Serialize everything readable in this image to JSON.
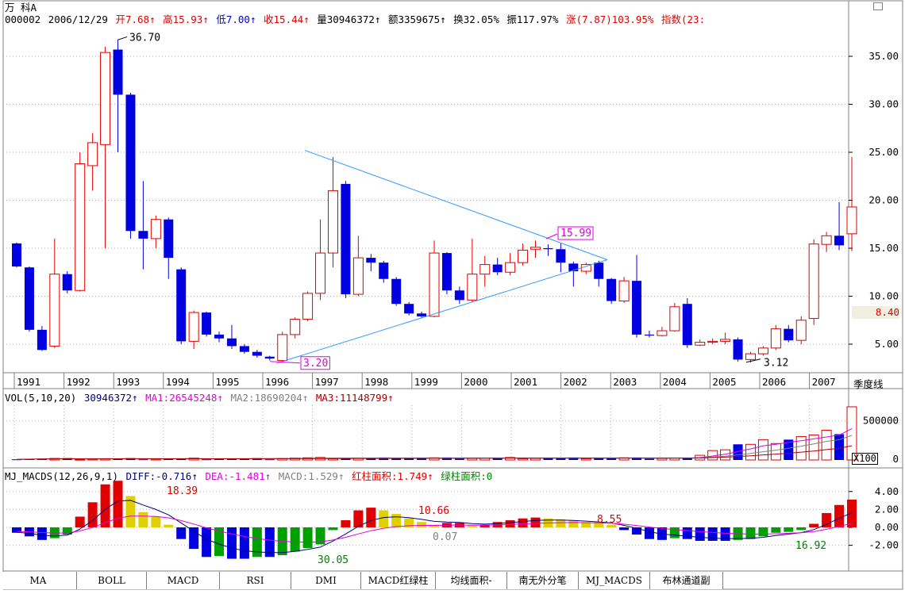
{
  "header": {
    "stock_name": "万  科A",
    "code": "000002",
    "date": "2006/12/29",
    "open": "开7.68↑",
    "high": "高15.93↑",
    "low": "低7.00↑",
    "close": "收15.44↑",
    "volume": "量30946372↑",
    "amount": "额3359675↑",
    "turnover": "换32.05%",
    "amplitude": "振117.97%",
    "change": "涨(7.87)103.95%",
    "index": "指数(23:"
  },
  "period_label": "季度线",
  "current_price_tag": "8.40",
  "vol_panel": {
    "title": "VOL(5,10,20)",
    "value": "30946372↑",
    "ma1": "MA1:26545248↑",
    "ma2": "MA2:18690204↑",
    "ma3": "MA3:11148799↑",
    "unit": "X100"
  },
  "macd_panel": {
    "title": "MJ_MACDS(12,26,9,1)",
    "diff": "DIFF:-0.716↑",
    "dea": "DEA:-1.481↑",
    "macd": "MACD:1.529↑",
    "red_area": "红柱面积:1.749↑",
    "green_area": "绿柱面积:0"
  },
  "tabs": [
    "MA",
    "BOLL",
    "MACD",
    "RSI",
    "DMI",
    "MACD红绿柱",
    "均线面积-",
    "南无外分笔",
    "MJ_MACDS",
    "布林通道副"
  ],
  "colors": {
    "up": "#e00000",
    "down": "#0000e0",
    "trend": "#3399ff",
    "grid": "#b0b0b0",
    "green_bar": "#00a000",
    "yellow_bar": "#e0d000",
    "magenta": "#e000e0"
  },
  "chart_data": [
    {
      "type": "candlestick",
      "title": "",
      "x_axis_labels": [
        "1991",
        "1992",
        "1993",
        "1994",
        "1995",
        "1996",
        "1997",
        "1998",
        "1999",
        "2000",
        "2001",
        "2002",
        "2003",
        "2004",
        "2005",
        "2006",
        "2007"
      ],
      "y_ticks": [
        "35.00",
        "30.00",
        "25.00",
        "20.00",
        "15.00",
        "10.00",
        "5.00"
      ],
      "ylim": [
        2.0,
        38.0
      ],
      "candles": [
        [
          15.5,
          15.6,
          13.1,
          13.0
        ],
        [
          13.0,
          13.1,
          6.5,
          6.3
        ],
        [
          6.5,
          6.9,
          4.4,
          4.3
        ],
        [
          4.8,
          16.0,
          12.3,
          4.6
        ],
        [
          12.3,
          12.6,
          10.6,
          10.3
        ],
        [
          10.6,
          25.0,
          23.8,
          10.5
        ],
        [
          23.6,
          27.0,
          26.0,
          21.0
        ],
        [
          25.8,
          36.0,
          35.4,
          15.0
        ],
        [
          35.7,
          36.7,
          31.0,
          25.0
        ],
        [
          31.0,
          31.2,
          16.8,
          16.0
        ],
        [
          16.8,
          22.0,
          16.0,
          12.8
        ],
        [
          16.0,
          18.4,
          18.0,
          15.0
        ],
        [
          18.0,
          18.2,
          14.0,
          11.8
        ],
        [
          12.8,
          13.0,
          5.3,
          5.0
        ],
        [
          5.3,
          8.5,
          8.3,
          4.5
        ],
        [
          8.3,
          8.4,
          6.0,
          5.8
        ],
        [
          6.0,
          6.3,
          5.6,
          5.2
        ],
        [
          5.6,
          7.0,
          4.8,
          4.5
        ],
        [
          4.8,
          5.0,
          4.2,
          4.0
        ],
        [
          4.2,
          4.4,
          3.8,
          3.6
        ],
        [
          3.7,
          3.8,
          3.5,
          3.3
        ],
        [
          3.3,
          6.3,
          6.0,
          3.2
        ],
        [
          6.0,
          7.8,
          7.6,
          5.6
        ],
        [
          7.6,
          10.5,
          10.3,
          7.4
        ],
        [
          10.3,
          18.0,
          14.5,
          9.6
        ],
        [
          14.5,
          24.5,
          21.0,
          13.0
        ],
        [
          21.7,
          22.0,
          10.2,
          9.8
        ],
        [
          10.2,
          16.3,
          14.0,
          10.0
        ],
        [
          14.0,
          14.4,
          13.5,
          12.6
        ],
        [
          13.5,
          13.7,
          11.8,
          11.4
        ],
        [
          11.8,
          12.0,
          9.2,
          9.0
        ],
        [
          9.2,
          9.4,
          8.2,
          8.0
        ],
        [
          8.2,
          8.4,
          7.9,
          7.7
        ],
        [
          7.9,
          15.8,
          14.5,
          7.8
        ],
        [
          14.5,
          14.6,
          10.6,
          10.2
        ],
        [
          10.6,
          11.0,
          9.6,
          9.2
        ],
        [
          9.6,
          16.0,
          12.3,
          9.4
        ],
        [
          12.3,
          14.2,
          13.3,
          11.0
        ],
        [
          13.3,
          14.0,
          12.5,
          12.2
        ],
        [
          12.5,
          14.5,
          13.5,
          12.2
        ],
        [
          13.5,
          15.5,
          14.8,
          13.2
        ],
        [
          14.9,
          15.8,
          15.1,
          14.0
        ],
        [
          15.0,
          15.4,
          14.9,
          14.2
        ],
        [
          14.9,
          15.5,
          13.5,
          12.5
        ],
        [
          13.4,
          13.6,
          12.6,
          11.0
        ],
        [
          12.6,
          13.5,
          13.3,
          12.3
        ],
        [
          13.5,
          13.7,
          11.8,
          11.0
        ],
        [
          11.8,
          11.9,
          9.5,
          9.2
        ],
        [
          9.5,
          12.0,
          11.6,
          9.3
        ],
        [
          11.6,
          14.3,
          6.0,
          5.7
        ],
        [
          6.0,
          6.4,
          5.9,
          5.7
        ],
        [
          5.9,
          6.8,
          6.4,
          5.8
        ],
        [
          6.4,
          9.3,
          8.9,
          6.3
        ],
        [
          9.2,
          9.8,
          4.9,
          4.6
        ],
        [
          4.9,
          5.5,
          5.2,
          4.8
        ],
        [
          5.2,
          5.6,
          5.3,
          5.0
        ],
        [
          5.3,
          6.2,
          5.5,
          5.0
        ],
        [
          5.5,
          5.7,
          3.4,
          3.2
        ],
        [
          3.4,
          4.2,
          4.0,
          3.1
        ],
        [
          4.0,
          4.8,
          4.6,
          3.8
        ],
        [
          4.6,
          7.0,
          6.6,
          4.4
        ],
        [
          6.6,
          7.0,
          5.4,
          5.2
        ],
        [
          5.4,
          7.9,
          7.5,
          5.0
        ],
        [
          7.68,
          15.93,
          15.44,
          7.0
        ],
        [
          15.4,
          16.7,
          16.3,
          14.6
        ],
        [
          16.3,
          19.8,
          15.3,
          14.8
        ],
        [
          16.5,
          24.5,
          19.3,
          14.7
        ]
      ],
      "annotations": [
        {
          "text": "36.70",
          "value": 36.7
        },
        {
          "text": "3.20",
          "value": 3.2
        },
        {
          "text": "15.99",
          "value": 15.99
        },
        {
          "text": "3.12",
          "value": 3.12
        }
      ]
    },
    {
      "type": "bar",
      "title": "VOL(5,10,20)",
      "y_ticks": [
        "500000",
        "0"
      ],
      "ylim": [
        0,
        700000
      ],
      "values_tail": [
        30000,
        60000,
        120000,
        130000,
        200000,
        200000,
        260000,
        210000,
        260000,
        300000,
        320000,
        380000,
        330000,
        680000
      ]
    },
    {
      "type": "bar",
      "title": "MJ_MACDS(12,26,9,1)",
      "y_ticks": [
        "4.00",
        "2.00",
        "0.00",
        "-2.00"
      ],
      "ylim": [
        -4.0,
        5.5
      ],
      "values": [
        -0.6,
        -1.0,
        -1.4,
        -1.2,
        -0.8,
        1.2,
        2.8,
        4.8,
        5.2,
        3.5,
        1.7,
        1.2,
        0.3,
        -1.3,
        -2.4,
        -3.3,
        -3.2,
        -3.5,
        -3.5,
        -3.3,
        -3.3,
        -3.1,
        -2.7,
        -2.3,
        -1.9,
        -0.3,
        0.8,
        1.9,
        2.2,
        1.9,
        1.5,
        1.0,
        0.6,
        0.3,
        0.5,
        0.5,
        0.2,
        0.3,
        0.6,
        0.8,
        1.0,
        1.1,
        1.0,
        0.9,
        0.8,
        0.6,
        0.5,
        0.3,
        -0.3,
        -0.8,
        -1.3,
        -1.4,
        -1.2,
        -1.3,
        -1.5,
        -1.5,
        -1.5,
        -1.4,
        -1.3,
        -1.0,
        -0.6,
        -0.5,
        -0.3,
        0.4,
        1.6,
        2.5,
        3.1
      ],
      "annotations": [
        {
          "text": "18.39"
        },
        {
          "text": "30.05"
        },
        {
          "text": "10.66"
        },
        {
          "text": "0.07"
        },
        {
          "text": "8.55"
        },
        {
          "text": "16.92"
        }
      ]
    }
  ]
}
